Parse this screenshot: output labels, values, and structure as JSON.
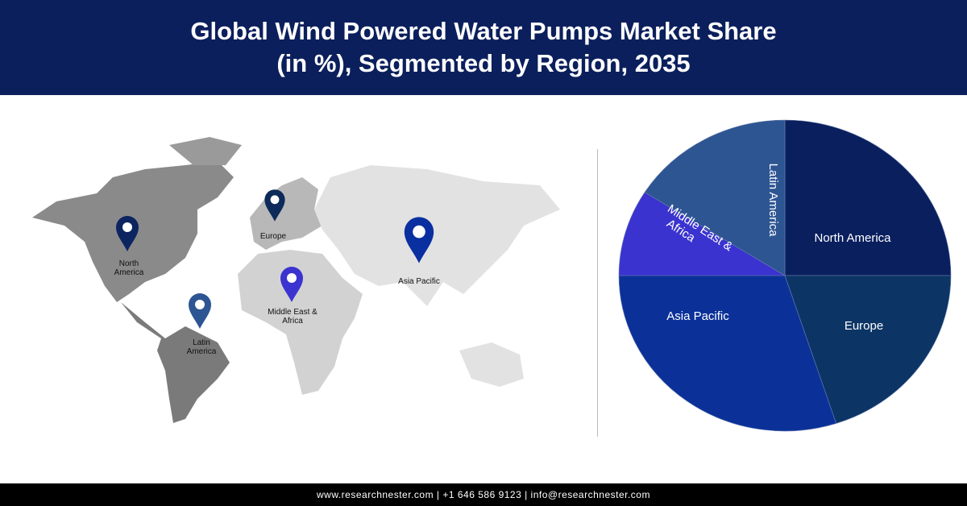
{
  "header": {
    "title_line1": "Global Wind Powered Water Pumps Market Share",
    "title_line2": "(in %), Segmented by Region, 2035"
  },
  "map": {
    "pins": [
      {
        "label": "North America",
        "lines": [
          "North",
          "America"
        ],
        "color": "#0c2460"
      },
      {
        "label": "Europe",
        "lines": [
          "Europe"
        ],
        "color": "#0c2a5a"
      },
      {
        "label": "Asia Pacific",
        "lines": [
          "Asia Pacific"
        ],
        "color": "#0a2fa0"
      },
      {
        "label": "Middle East & Africa",
        "lines": [
          "Middle East &",
          "Africa"
        ],
        "color": "#3b34d0"
      },
      {
        "label": "Latin America",
        "lines": [
          "Latin",
          "America"
        ],
        "color": "#2d5594"
      }
    ]
  },
  "chart_data": {
    "type": "pie",
    "title": "Global Wind Powered Water Pumps Market Share (in %), Segmented by Region, 2035",
    "start": "12 o'clock",
    "direction": "clockwise",
    "slices": [
      {
        "name": "North America",
        "value": 25,
        "color": "#0a1f5e"
      },
      {
        "name": "Europe",
        "value": 20,
        "color": "#0c3566"
      },
      {
        "name": "Asia Pacific",
        "value": 30,
        "color": "#0b3199"
      },
      {
        "name": "Middle East & Africa",
        "label_lines": [
          "Middle East &",
          "Africa"
        ],
        "value": 9,
        "color": "#3a33cf"
      },
      {
        "name": "Latin America",
        "value": 16,
        "color": "#2d5592"
      }
    ]
  },
  "footer": {
    "text": "www.researchnester.com  |  +1 646 586 9123  |  info@researchnester.com"
  }
}
